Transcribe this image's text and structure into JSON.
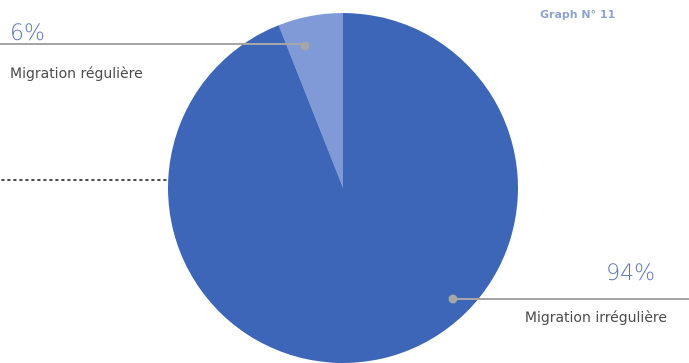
{
  "graph_label": "Graph N° 11",
  "colors": {
    "title": "#8fa3cf",
    "leader": "#a6a6a6",
    "text": "#4a4a4a",
    "dots": "#333333"
  },
  "chart_data": {
    "type": "pie",
    "title": "",
    "unit": "%",
    "slices": [
      {
        "label": "Migration régulière",
        "value": 6,
        "display": "6%",
        "color": "#7f9ad7",
        "percent_color": "#5b74b8"
      },
      {
        "label": "Migration irrégulière",
        "value": 94,
        "display": "94%",
        "color": "#3e66b8",
        "percent_color": "#5b74b8"
      }
    ],
    "start": "12 o'clock",
    "direction": "counterclockwise",
    "legend": "none"
  }
}
